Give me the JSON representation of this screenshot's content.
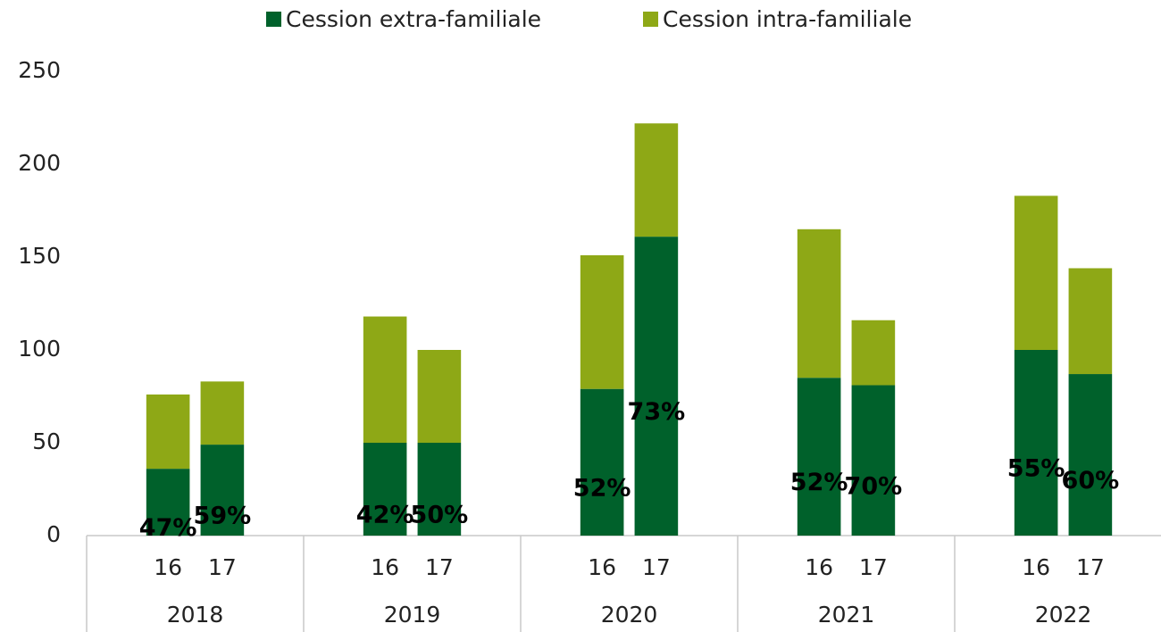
{
  "chart_data": {
    "type": "stacked_bar",
    "groups": [
      "2018",
      "2019",
      "2020",
      "2021",
      "2022"
    ],
    "categories": [
      "16",
      "17",
      "16",
      "17",
      "16",
      "17",
      "16",
      "17",
      "16",
      "17"
    ],
    "series": [
      {
        "name": "Cession extra-familiale",
        "color": "#00612b",
        "values": [
          36,
          49,
          50,
          50,
          79,
          161,
          85,
          81,
          100,
          87
        ]
      },
      {
        "name": "Cession intra-familiale",
        "color": "#8ea816",
        "values": [
          40,
          34,
          68,
          50,
          72,
          61,
          80,
          35,
          83,
          57
        ]
      }
    ],
    "data_labels": {
      "values": [
        47,
        59,
        42,
        50,
        52,
        73,
        52,
        70,
        55,
        60
      ],
      "value_labels": [
        "47%",
        "59%",
        "42%",
        "50%",
        "52%",
        "73%",
        "52%",
        "70%",
        "55%",
        "60%"
      ]
    },
    "ylim": [
      0,
      250
    ],
    "yticks": [
      0,
      50,
      100,
      150,
      200,
      250
    ],
    "grid": false,
    "legend": "top"
  }
}
